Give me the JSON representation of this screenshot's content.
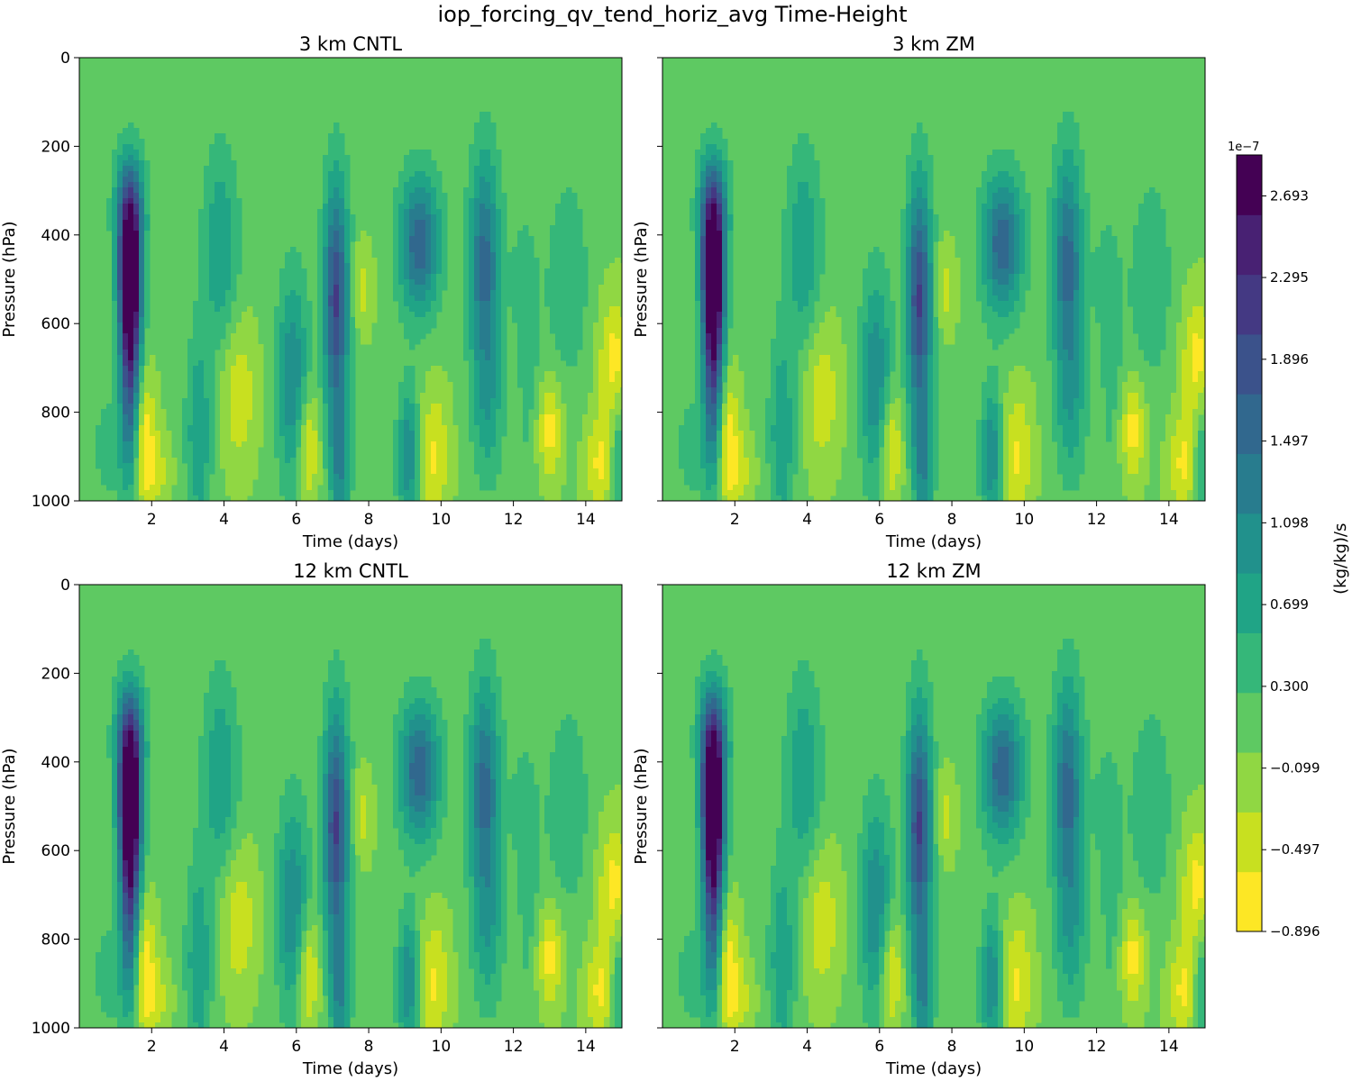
{
  "chart_data": {
    "type": "heatmap",
    "suptitle": "iop_forcing_qv_tend_horiz_avg Time-Height",
    "xlabel": "Time (days)",
    "ylabel": "Pressure (hPa)",
    "xlim": [
      0,
      15
    ],
    "ylim": [
      1000,
      0
    ],
    "xticks": [
      "2",
      "4",
      "6",
      "8",
      "10",
      "12",
      "14"
    ],
    "xtick_values": [
      2,
      4,
      6,
      8,
      10,
      12,
      14
    ],
    "yticks": [
      "0",
      "200",
      "400",
      "600",
      "800",
      "1000"
    ],
    "ytick_values": [
      0,
      200,
      400,
      600,
      800,
      1000
    ],
    "panels": [
      {
        "title": "3 km CNTL",
        "show_ytick_labels": true
      },
      {
        "title": "3 km ZM",
        "show_ytick_labels": false
      },
      {
        "title": "12 km CNTL",
        "show_ytick_labels": true
      },
      {
        "title": "12 km ZM",
        "show_ytick_labels": false
      }
    ],
    "features": [
      {
        "t": 1.4,
        "p": 490,
        "a": 2.9,
        "st": 0.22,
        "sp": 120
      },
      {
        "t": 1.4,
        "p": 720,
        "a": 1.8,
        "st": 0.2,
        "sp": 170
      },
      {
        "t": 1.4,
        "p": 330,
        "a": 1.2,
        "st": 0.3,
        "sp": 90
      },
      {
        "t": 0.8,
        "p": 880,
        "a": 0.4,
        "st": 0.3,
        "sp": 80
      },
      {
        "t": 1.8,
        "p": 870,
        "a": -0.9,
        "st": 0.22,
        "sp": 110
      },
      {
        "t": 2.2,
        "p": 930,
        "a": -0.4,
        "st": 0.25,
        "sp": 60
      },
      {
        "t": 3.9,
        "p": 430,
        "a": 0.8,
        "st": 0.35,
        "sp": 160
      },
      {
        "t": 3.3,
        "p": 850,
        "a": 0.8,
        "st": 0.25,
        "sp": 160
      },
      {
        "t": 4.4,
        "p": 760,
        "a": -0.6,
        "st": 0.35,
        "sp": 120
      },
      {
        "t": 5.9,
        "p": 730,
        "a": 1.1,
        "st": 0.3,
        "sp": 170
      },
      {
        "t": 6.3,
        "p": 880,
        "a": -0.85,
        "st": 0.22,
        "sp": 90
      },
      {
        "t": 7.1,
        "p": 550,
        "a": 2.0,
        "st": 0.25,
        "sp": 190
      },
      {
        "t": 7.2,
        "p": 920,
        "a": 1.0,
        "st": 0.2,
        "sp": 100
      },
      {
        "t": 7.8,
        "p": 520,
        "a": -0.5,
        "st": 0.22,
        "sp": 70
      },
      {
        "t": 9.4,
        "p": 420,
        "a": 1.6,
        "st": 0.4,
        "sp": 110
      },
      {
        "t": 9.1,
        "p": 900,
        "a": 1.1,
        "st": 0.22,
        "sp": 110
      },
      {
        "t": 9.8,
        "p": 900,
        "a": -0.7,
        "st": 0.3,
        "sp": 110
      },
      {
        "t": 11.2,
        "p": 470,
        "a": 1.5,
        "st": 0.3,
        "sp": 180
      },
      {
        "t": 11.3,
        "p": 800,
        "a": 0.6,
        "st": 0.3,
        "sp": 120
      },
      {
        "t": 12.3,
        "p": 640,
        "a": 0.5,
        "st": 0.3,
        "sp": 200
      },
      {
        "t": 12.0,
        "p": 720,
        "a": -0.3,
        "st": 0.2,
        "sp": 100
      },
      {
        "t": 13.0,
        "p": 840,
        "a": -0.8,
        "st": 0.25,
        "sp": 80
      },
      {
        "t": 13.5,
        "p": 500,
        "a": 0.5,
        "st": 0.4,
        "sp": 160
      },
      {
        "t": 14.4,
        "p": 920,
        "a": -0.7,
        "st": 0.3,
        "sp": 80
      },
      {
        "t": 14.8,
        "p": 700,
        "a": -0.9,
        "st": 0.3,
        "sp": 110
      },
      {
        "t": 14.9,
        "p": 900,
        "a": 0.8,
        "st": 0.18,
        "sp": 120
      }
    ],
    "colorbar": {
      "label": "(kg/kg)/s",
      "exponent": "1e−7",
      "min": -0.896,
      "max": 2.893,
      "levels": 19,
      "tick_values": [
        -0.896,
        -0.497,
        -0.099,
        0.3,
        0.699,
        1.098,
        1.497,
        1.896,
        2.295,
        2.693
      ],
      "tick_labels": [
        "−0.896",
        "−0.497",
        "−0.099",
        "0.300",
        "0.699",
        "1.098",
        "1.497",
        "1.896",
        "2.295",
        "2.693"
      ],
      "colors": [
        "#fde725",
        "#c8e020",
        "#90d743",
        "#5ec962",
        "#35b779",
        "#20a486",
        "#21918c",
        "#287c8e",
        "#31688e",
        "#3b528b",
        "#443983",
        "#482173",
        "#440154"
      ]
    }
  }
}
